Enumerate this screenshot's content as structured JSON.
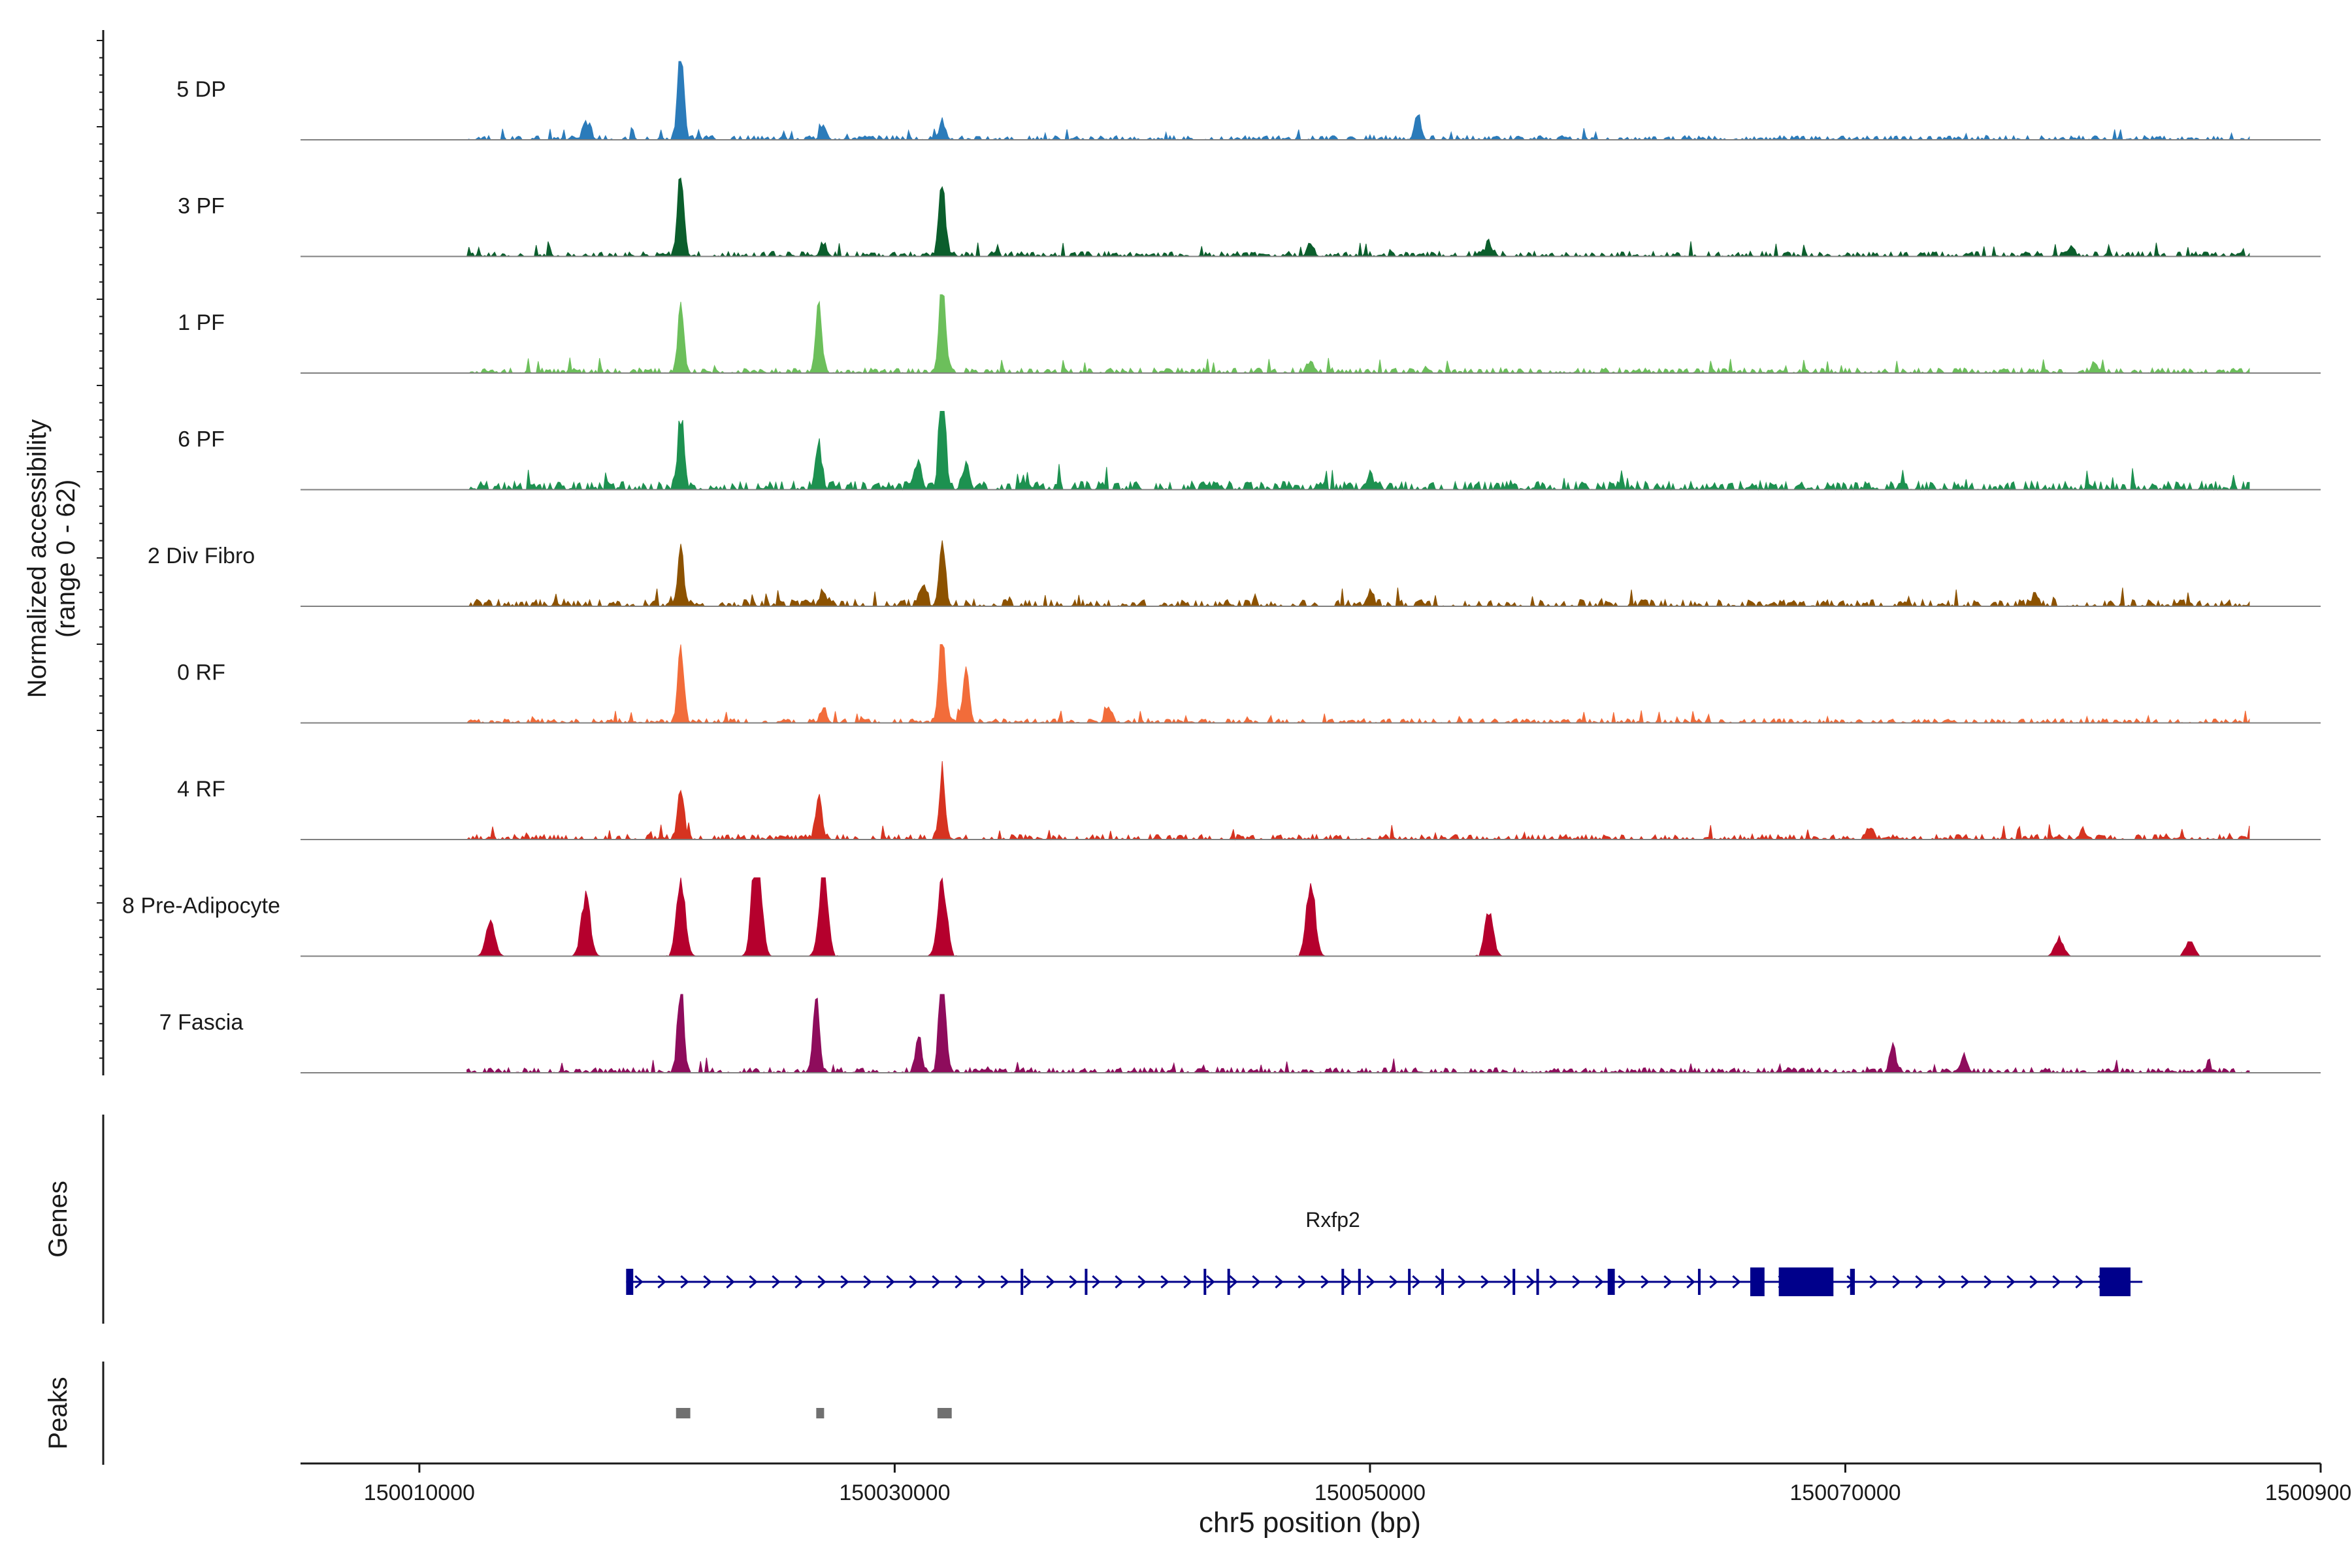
{
  "chart_data": {
    "type": "area",
    "title": "",
    "ylabel_line1": "Normalized accessibility",
    "ylabel_line2": "(range 0 - 62)",
    "xlabel": "chr5 position (bp)",
    "xlim": [
      150005000,
      150090000
    ],
    "xticks": [
      150010000,
      150030000,
      150050000,
      150070000,
      150090000
    ],
    "xtick_labels": [
      "150010000",
      "150030000",
      "150050000",
      "150070000",
      "150090000"
    ],
    "ylim": [
      0,
      62
    ],
    "track_start": 150012000,
    "track_end": 150087000,
    "tracks": [
      {
        "name": "5 DP",
        "color": "#2b7bba",
        "noise": 2.5,
        "density": 0.55,
        "peaks": [
          [
            150021000,
            60
          ],
          [
            150017000,
            12
          ],
          [
            150027000,
            10
          ],
          [
            150032000,
            12
          ],
          [
            150052000,
            16
          ]
        ]
      },
      {
        "name": "3 PF",
        "color": "#0b5e2c",
        "noise": 3,
        "density": 0.6,
        "peaks": [
          [
            150021000,
            56
          ],
          [
            150027000,
            8
          ],
          [
            150032000,
            48
          ],
          [
            150047500,
            8
          ],
          [
            150055000,
            8
          ],
          [
            150079500,
            7
          ]
        ]
      },
      {
        "name": "1 PF",
        "color": "#6cbf5b",
        "noise": 3,
        "density": 0.6,
        "peaks": [
          [
            150021000,
            42
          ],
          [
            150026800,
            46
          ],
          [
            150032000,
            70
          ],
          [
            150047500,
            8
          ],
          [
            150080500,
            6
          ]
        ]
      },
      {
        "name": "6 PF",
        "color": "#1d9150",
        "noise": 5,
        "density": 0.65,
        "peaks": [
          [
            150021000,
            46
          ],
          [
            150026800,
            32
          ],
          [
            150032000,
            80
          ],
          [
            150031000,
            20
          ],
          [
            150033000,
            18
          ],
          [
            150050000,
            10
          ]
        ]
      },
      {
        "name": "2 Div Fibro",
        "color": "#8c5200",
        "noise": 4,
        "density": 0.55,
        "peaks": [
          [
            150021000,
            38
          ],
          [
            150027000,
            10
          ],
          [
            150032000,
            40
          ],
          [
            150031200,
            14
          ],
          [
            150050000,
            10
          ],
          [
            150078000,
            8
          ]
        ]
      },
      {
        "name": "0 RF",
        "color": "#f26c3a",
        "noise": 2.5,
        "density": 0.6,
        "peaks": [
          [
            150021000,
            48
          ],
          [
            150027000,
            10
          ],
          [
            150032000,
            72
          ],
          [
            150033000,
            34
          ],
          [
            150039000,
            10
          ]
        ]
      },
      {
        "name": "4 RF",
        "color": "#d63320",
        "noise": 3,
        "density": 0.6,
        "peaks": [
          [
            150021000,
            36
          ],
          [
            150026800,
            30
          ],
          [
            150032000,
            46
          ],
          [
            150071000,
            8
          ],
          [
            150080000,
            6
          ]
        ]
      },
      {
        "name": "8 Pre-Adipocyte",
        "color": "#b5002d",
        "noise": 0,
        "density": 0.35,
        "peaks": [
          [
            150024200,
            82
          ],
          [
            150021000,
            52
          ],
          [
            150027000,
            56
          ],
          [
            150032000,
            52
          ],
          [
            150047500,
            50
          ],
          [
            150017000,
            40
          ],
          [
            150013000,
            24
          ],
          [
            150055000,
            28
          ],
          [
            150079000,
            12
          ],
          [
            150084500,
            10
          ]
        ]
      },
      {
        "name": "7 Fascia",
        "color": "#8e0c5c",
        "noise": 3,
        "density": 0.6,
        "peaks": [
          [
            150021000,
            62
          ],
          [
            150026700,
            54
          ],
          [
            150032000,
            86
          ],
          [
            150031000,
            24
          ],
          [
            150072000,
            16
          ],
          [
            150075000,
            12
          ]
        ]
      }
    ],
    "gene": {
      "name": "Rxfp2",
      "color": "#00008b",
      "start": 150018700,
      "end": 150082500,
      "exons": [
        [
          150018700,
          150019000
        ],
        [
          150035300,
          150035400
        ],
        [
          150038000,
          150038100
        ],
        [
          150043000,
          150043100
        ],
        [
          150044000,
          150044100
        ],
        [
          150048800,
          150048900
        ],
        [
          150049500,
          150049600
        ],
        [
          150051600,
          150051700
        ],
        [
          150053000,
          150053100
        ],
        [
          150056000,
          150056100
        ],
        [
          150057000,
          150057100
        ],
        [
          150060000,
          150060300
        ],
        [
          150063800,
          150063900
        ],
        [
          150066000,
          150066600
        ],
        [
          150067200,
          150069500
        ],
        [
          150070200,
          150070400
        ],
        [
          150080700,
          150082000
        ]
      ],
      "label_section": "Genes"
    },
    "peaks_section": {
      "label": "Peaks",
      "color": "#707070",
      "regions": [
        [
          150020800,
          150021400
        ],
        [
          150026700,
          150027000
        ],
        [
          150031800,
          150032400
        ]
      ]
    }
  }
}
